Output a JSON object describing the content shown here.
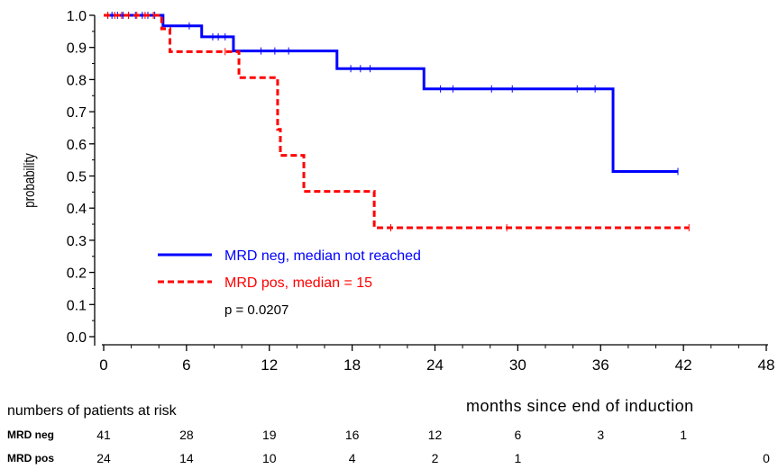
{
  "chart_data": {
    "type": "line",
    "title": "",
    "xlabel": "months since end of induction",
    "ylabel": "probability",
    "xlim": [
      0,
      48
    ],
    "ylim": [
      0.0,
      1.0
    ],
    "x_ticks": [
      "0",
      "6",
      "12",
      "18",
      "24",
      "30",
      "36",
      "42",
      "48"
    ],
    "y_ticks": [
      "0.0",
      "0.1",
      "0.2",
      "0.3",
      "0.4",
      "0.5",
      "0.6",
      "0.7",
      "0.8",
      "0.9",
      "1.0"
    ],
    "series": [
      {
        "name": "MRD neg, median not reached",
        "color": "#0000ff",
        "style": "solid",
        "steps": [
          [
            0,
            1.0
          ],
          [
            4.3,
            0.967
          ],
          [
            7.1,
            0.933
          ],
          [
            9.4,
            0.889
          ],
          [
            16.9,
            0.834
          ],
          [
            23.2,
            0.771
          ],
          [
            36.9,
            0.514
          ],
          [
            41.6,
            0.514
          ]
        ],
        "censored": [
          0.3,
          0.6,
          1.0,
          1.4,
          1.8,
          2.3,
          2.8,
          3.2,
          3.7,
          6.2,
          7.9,
          8.3,
          8.8,
          11.4,
          12.4,
          13.4,
          17.9,
          18.6,
          19.3,
          24.4,
          25.3,
          28.1,
          29.6,
          34.3,
          35.6,
          41.6
        ]
      },
      {
        "name": "MRD pos, median =  15",
        "color": "#ff0000",
        "style": "dashed",
        "steps": [
          [
            0,
            1.0
          ],
          [
            4.2,
            0.958
          ],
          [
            4.8,
            0.887
          ],
          [
            9.8,
            0.806
          ],
          [
            12.6,
            0.645
          ],
          [
            12.8,
            0.564
          ],
          [
            14.5,
            0.452
          ],
          [
            19.6,
            0.339
          ],
          [
            42.4,
            0.339
          ]
        ],
        "censored": [
          0.3,
          0.8,
          1.3,
          1.8,
          2.4,
          3.0,
          3.6,
          8.8,
          20.8,
          29.2,
          42.4
        ]
      }
    ],
    "legend": {
      "position": "bottom-left inside plot"
    },
    "annotation": "p = 0.0207",
    "at_risk": {
      "title": "numbers of patients at risk",
      "rows": [
        {
          "label": "MRD neg",
          "values": [
            "41",
            "28",
            "19",
            "16",
            "12",
            "6",
            "3",
            "1",
            ""
          ]
        },
        {
          "label": "MRD pos",
          "values": [
            "24",
            "14",
            "10",
            "4",
            "2",
            "1",
            "",
            "",
            "0"
          ]
        }
      ]
    }
  }
}
